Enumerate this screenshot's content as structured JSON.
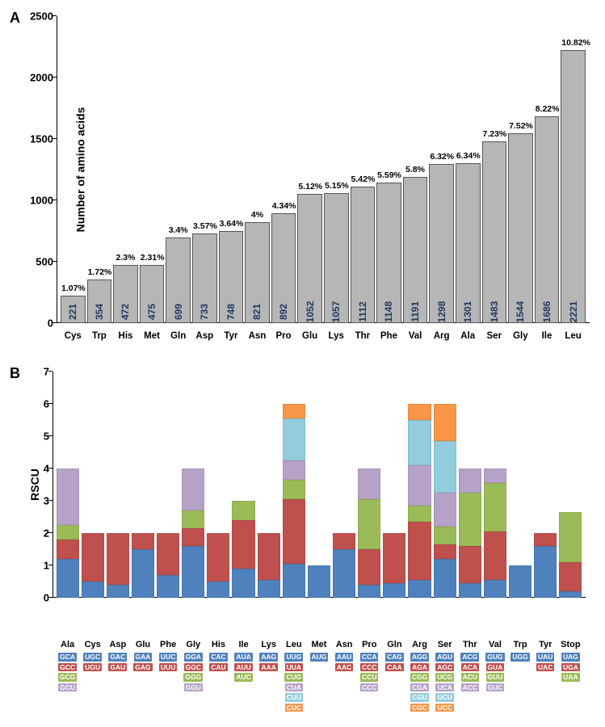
{
  "colors": {
    "gray_bar": "#b6b6b6",
    "bar_value_text": "#1f3a5f",
    "seg1_blue": "#4f81bd",
    "seg2_red": "#c0504d",
    "seg3_green": "#9bbb59",
    "seg4_purple": "#b7a2c7",
    "seg5_lightblue": "#93cddd",
    "seg6_orange": "#f79646",
    "background": "#ffffff"
  },
  "chartA": {
    "ylabel": "Number of amino acids",
    "ymax": 2500,
    "ytick_step": 500,
    "yticks": [
      0,
      500,
      1000,
      1500,
      2000,
      2500
    ],
    "bars": [
      {
        "cat": "Cys",
        "value": 221,
        "pct": "1.07%"
      },
      {
        "cat": "Trp",
        "value": 354,
        "pct": "1.72%"
      },
      {
        "cat": "His",
        "value": 472,
        "pct": "2.3%"
      },
      {
        "cat": "Met",
        "value": 475,
        "pct": "2.31%"
      },
      {
        "cat": "Gln",
        "value": 699,
        "pct": "3.4%"
      },
      {
        "cat": "Asp",
        "value": 733,
        "pct": "3.57%"
      },
      {
        "cat": "Tyr",
        "value": 748,
        "pct": "3.64%"
      },
      {
        "cat": "Asn",
        "value": 821,
        "pct": "4%"
      },
      {
        "cat": "Pro",
        "value": 892,
        "pct": "4.34%"
      },
      {
        "cat": "Glu",
        "value": 1052,
        "pct": "5.12%"
      },
      {
        "cat": "Lys",
        "value": 1057,
        "pct": "5.15%"
      },
      {
        "cat": "Thr",
        "value": 1112,
        "pct": "5.42%"
      },
      {
        "cat": "Phe",
        "value": 1148,
        "pct": "5.59%"
      },
      {
        "cat": "Val",
        "value": 1191,
        "pct": "5.8%"
      },
      {
        "cat": "Arg",
        "value": 1298,
        "pct": "6.32%"
      },
      {
        "cat": "Ala",
        "value": 1301,
        "pct": "6.34%"
      },
      {
        "cat": "Ser",
        "value": 1483,
        "pct": "7.23%"
      },
      {
        "cat": "Gly",
        "value": 1544,
        "pct": "7.52%"
      },
      {
        "cat": "Ile",
        "value": 1686,
        "pct": "8.22%"
      },
      {
        "cat": "Leu",
        "value": 2221,
        "pct": "10.82%"
      }
    ]
  },
  "chartB": {
    "ylabel": "RSCU",
    "ymax": 7,
    "yticks": [
      0,
      1,
      2,
      3,
      4,
      5,
      6,
      7
    ],
    "series": [
      {
        "cat": "Ala",
        "codons": [
          "GCA",
          "GCC",
          "GCG",
          "GCU"
        ],
        "segs": [
          1.2,
          0.6,
          0.45,
          1.75
        ]
      },
      {
        "cat": "Cys",
        "codons": [
          "UGC",
          "UGU"
        ],
        "segs": [
          0.5,
          1.5
        ]
      },
      {
        "cat": "Asp",
        "codons": [
          "GAC",
          "GAU"
        ],
        "segs": [
          0.4,
          1.6
        ]
      },
      {
        "cat": "Glu",
        "codons": [
          "GAA",
          "GAG"
        ],
        "segs": [
          1.5,
          0.5
        ]
      },
      {
        "cat": "Phe",
        "codons": [
          "UUC",
          "UUU"
        ],
        "segs": [
          0.7,
          1.3
        ]
      },
      {
        "cat": "Gly",
        "codons": [
          "GGA",
          "GGC",
          "GGG",
          "GGU"
        ],
        "segs": [
          1.6,
          0.55,
          0.55,
          1.3
        ]
      },
      {
        "cat": "His",
        "codons": [
          "CAC",
          "CAU"
        ],
        "segs": [
          0.5,
          1.5
        ]
      },
      {
        "cat": "Ile",
        "codons": [
          "AUA",
          "AUU",
          "AUC"
        ],
        "segs": [
          0.9,
          1.5,
          0.6
        ]
      },
      {
        "cat": "Lys",
        "codons": [
          "AAG",
          "AAA"
        ],
        "segs": [
          0.55,
          1.45
        ]
      },
      {
        "cat": "Leu",
        "codons": [
          "UUG",
          "UUA",
          "CUG",
          "CUA",
          "CUU",
          "CUC"
        ],
        "segs": [
          1.05,
          2.0,
          0.6,
          0.6,
          1.3,
          0.45
        ]
      },
      {
        "cat": "Met",
        "codons": [
          "AUG"
        ],
        "segs": [
          1.0
        ]
      },
      {
        "cat": "Asn",
        "codons": [
          "AAU",
          "AAC"
        ],
        "segs": [
          1.5,
          0.5
        ]
      },
      {
        "cat": "Pro",
        "codons": [
          "CCA",
          "CCC",
          "CCU",
          "CCC"
        ],
        "segs": [
          0.4,
          1.1,
          1.55,
          0.95
        ]
      },
      {
        "cat": "Gln",
        "codons": [
          "CAG",
          "CAA"
        ],
        "segs": [
          0.45,
          1.55
        ]
      },
      {
        "cat": "Arg",
        "codons": [
          "AGG",
          "AGA",
          "CGG",
          "CGA",
          "CGU",
          "CGC"
        ],
        "segs": [
          0.55,
          1.8,
          0.5,
          1.25,
          1.4,
          0.5
        ]
      },
      {
        "cat": "Ser",
        "codons": [
          "AGU",
          "AGC",
          "UCG",
          "UCA",
          "UCU",
          "UCC"
        ],
        "segs": [
          1.2,
          0.45,
          0.55,
          1.05,
          1.6,
          1.15
        ]
      },
      {
        "cat": "Thr",
        "codons": [
          "ACG",
          "ACA",
          "ACU",
          "ACC"
        ],
        "segs": [
          0.45,
          1.15,
          1.65,
          0.75
        ]
      },
      {
        "cat": "Val",
        "codons": [
          "GUG",
          "GUA",
          "GUU",
          "GUC"
        ],
        "segs": [
          0.55,
          1.5,
          1.5,
          0.45
        ]
      },
      {
        "cat": "Trp",
        "codons": [
          "UGG"
        ],
        "segs": [
          1.0
        ]
      },
      {
        "cat": "Tyr",
        "codons": [
          "UAU",
          "UAC"
        ],
        "segs": [
          1.6,
          0.4
        ]
      },
      {
        "cat": "Stop",
        "codons": [
          "UAG",
          "UGA",
          "UAA"
        ],
        "segs": [
          0.2,
          0.9,
          1.55
        ]
      }
    ],
    "seg_colors": [
      "seg1_blue",
      "seg2_red",
      "seg3_green",
      "seg4_purple",
      "seg5_lightblue",
      "seg6_orange"
    ]
  }
}
